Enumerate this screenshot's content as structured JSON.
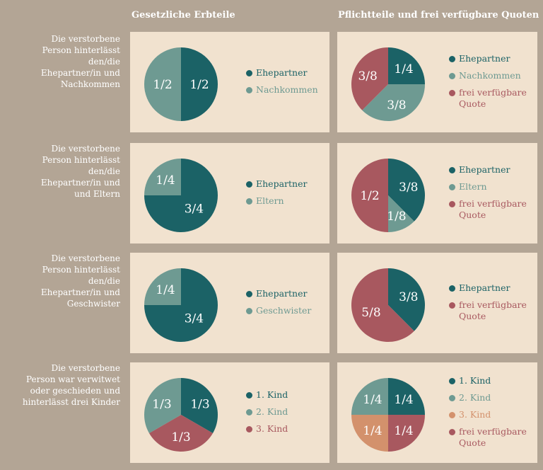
{
  "colors": {
    "dark_teal": "#1b6266",
    "light_teal": "#6e9a92",
    "rose": "#a8585f",
    "peach": "#d3916c",
    "panel_bg": "#f1e2cf",
    "page_bg": "#b3a595"
  },
  "headers": {
    "left": "Gesetzliche Erbteile",
    "right": "Pflichtteile und frei verfügbare Quoten"
  },
  "rows": [
    {
      "label": [
        "Die verstorbene",
        "Person hinterlässt",
        "den/die",
        "Ehepartner/in und",
        "Nachkommen"
      ],
      "left": {
        "legend": [
          {
            "label": "Ehepartner",
            "color": "#1b6266"
          },
          {
            "label": "Nachkommen",
            "color": "#6e9a92"
          }
        ]
      },
      "right": {
        "legend": [
          {
            "label": "Ehepartner",
            "color": "#1b6266"
          },
          {
            "label": "Nachkommen",
            "color": "#6e9a92"
          },
          {
            "label": "frei verfügbare\nQuote",
            "color": "#a8585f"
          }
        ]
      }
    },
    {
      "label": [
        "Die verstorbene",
        "Person hinterlässt",
        "den/die",
        "Ehepartner/in und",
        "und Eltern"
      ],
      "left": {
        "legend": [
          {
            "label": "Ehepartner",
            "color": "#1b6266"
          },
          {
            "label": "Eltern",
            "color": "#6e9a92"
          }
        ]
      },
      "right": {
        "legend": [
          {
            "label": "Ehepartner",
            "color": "#1b6266"
          },
          {
            "label": "Eltern",
            "color": "#6e9a92"
          },
          {
            "label": "frei verfügbare\nQuote",
            "color": "#a8585f"
          }
        ]
      }
    },
    {
      "label": [
        "Die verstorbene",
        "Person hinterlässt",
        "den/die",
        "Ehepartner/in und",
        "Geschwister"
      ],
      "left": {
        "legend": [
          {
            "label": "Ehepartner",
            "color": "#1b6266"
          },
          {
            "label": "Geschwister",
            "color": "#6e9a92"
          }
        ]
      },
      "right": {
        "legend": [
          {
            "label": "Ehepartner",
            "color": "#1b6266"
          },
          {
            "label": "frei verfügbare\nQuote",
            "color": "#a8585f"
          }
        ]
      }
    },
    {
      "label": [
        "Die verstorbene",
        "Person war verwitwet",
        "oder geschieden und",
        "hinterlässt drei Kinder"
      ],
      "left": {
        "legend": [
          {
            "label": "1. Kind",
            "color": "#1b6266"
          },
          {
            "label": "2. Kind",
            "color": "#6e9a92"
          },
          {
            "label": "3. Kind",
            "color": "#a8585f"
          }
        ]
      },
      "right": {
        "legend": [
          {
            "label": "1. Kind",
            "color": "#1b6266"
          },
          {
            "label": "2. Kind",
            "color": "#6e9a92"
          },
          {
            "label": "3. Kind",
            "color": "#d3916c"
          },
          {
            "label": "frei verfügbare\nQuote",
            "color": "#a8585f"
          }
        ]
      }
    }
  ],
  "chart_data": [
    {
      "type": "pie",
      "title": "Gesetzliche Erbteile",
      "slices": [
        {
          "name": "Ehepartner",
          "value": 0.5,
          "label": "1/2",
          "color": "#1b6266"
        },
        {
          "name": "Nachkommen",
          "value": 0.5,
          "label": "1/2",
          "color": "#6e9a92"
        }
      ]
    },
    {
      "type": "pie",
      "title": "Pflichtteile und frei verfügbare Quoten",
      "slices": [
        {
          "name": "Ehepartner",
          "value": 0.25,
          "label": "1/4",
          "color": "#1b6266"
        },
        {
          "name": "Nachkommen",
          "value": 0.375,
          "label": "3/8",
          "color": "#6e9a92"
        },
        {
          "name": "frei verfügbare Quote",
          "value": 0.375,
          "label": "3/8",
          "color": "#a8585f"
        }
      ]
    },
    {
      "type": "pie",
      "title": "Gesetzliche Erbteile",
      "slices": [
        {
          "name": "Ehepartner",
          "value": 0.75,
          "label": "3/4",
          "color": "#1b6266"
        },
        {
          "name": "Eltern",
          "value": 0.25,
          "label": "1/4",
          "color": "#6e9a92"
        }
      ]
    },
    {
      "type": "pie",
      "title": "Pflichtteile und frei verfügbare Quoten",
      "slices": [
        {
          "name": "Ehepartner",
          "value": 0.375,
          "label": "3/8",
          "color": "#1b6266"
        },
        {
          "name": "Eltern",
          "value": 0.125,
          "label": "1/8",
          "color": "#6e9a92"
        },
        {
          "name": "frei verfügbare Quote",
          "value": 0.5,
          "label": "1/2",
          "color": "#a8585f"
        }
      ]
    },
    {
      "type": "pie",
      "title": "Gesetzliche Erbteile",
      "slices": [
        {
          "name": "Ehepartner",
          "value": 0.75,
          "label": "3/4",
          "color": "#1b6266"
        },
        {
          "name": "Geschwister",
          "value": 0.25,
          "label": "1/4",
          "color": "#6e9a92"
        }
      ]
    },
    {
      "type": "pie",
      "title": "Pflichtteile und frei verfügbare Quoten",
      "slices": [
        {
          "name": "Ehepartner",
          "value": 0.375,
          "label": "3/8",
          "color": "#1b6266"
        },
        {
          "name": "frei verfügbare Quote",
          "value": 0.625,
          "label": "5/8",
          "color": "#a8585f"
        }
      ]
    },
    {
      "type": "pie",
      "title": "Gesetzliche Erbteile",
      "slices": [
        {
          "name": "1. Kind",
          "value": 0.3333,
          "label": "1/3",
          "color": "#1b6266"
        },
        {
          "name": "3. Kind",
          "value": 0.3333,
          "label": "1/3",
          "color": "#a8585f"
        },
        {
          "name": "2. Kind",
          "value": 0.3333,
          "label": "1/3",
          "color": "#6e9a92"
        }
      ]
    },
    {
      "type": "pie",
      "title": "Pflichtteile und frei verfügbare Quoten",
      "slices": [
        {
          "name": "1. Kind",
          "value": 0.25,
          "label": "1/4",
          "color": "#1b6266"
        },
        {
          "name": "frei verfügbare Quote",
          "value": 0.25,
          "label": "1/4",
          "color": "#a8585f"
        },
        {
          "name": "3. Kind",
          "value": 0.25,
          "label": "1/4",
          "color": "#d3916c"
        },
        {
          "name": "2. Kind",
          "value": 0.25,
          "label": "1/4",
          "color": "#6e9a92"
        }
      ]
    }
  ]
}
